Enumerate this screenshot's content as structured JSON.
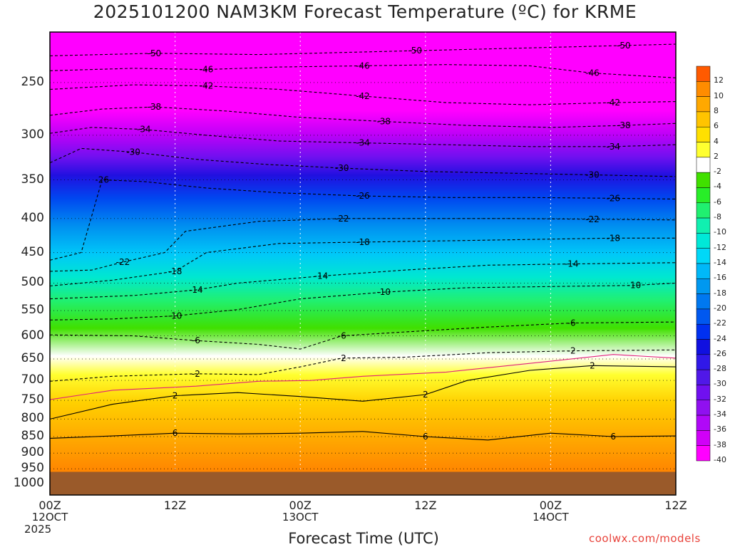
{
  "title": "2025101200 NAM3KM Forecast Temperature (ºC) for KRME",
  "xlabel": "Forecast Time (UTC)",
  "credit": "coolwx.com/models",
  "chart_data": {
    "type": "heatmap",
    "title": "2025101200 NAM3KM Forecast Temperature (ºC) for KRME",
    "xlabel": "Forecast Time (UTC)",
    "ylabel": "",
    "x_range_hours": [
      0,
      60
    ],
    "y_range_hpa": [
      210,
      1040
    ],
    "y_scale": "log",
    "y_inverted": true,
    "ground_level_hpa": 960,
    "x_ticks": [
      {
        "hour": 0,
        "line1": "00Z",
        "line2": "12OCT",
        "line3": "2025"
      },
      {
        "hour": 12,
        "line1": "12Z",
        "line2": "",
        "line3": ""
      },
      {
        "hour": 24,
        "line1": "00Z",
        "line2": "13OCT",
        "line3": ""
      },
      {
        "hour": 36,
        "line1": "12Z",
        "line2": "",
        "line3": ""
      },
      {
        "hour": 48,
        "line1": "00Z",
        "line2": "14OCT",
        "line3": ""
      },
      {
        "hour": 60,
        "line1": "12Z",
        "line2": "",
        "line3": ""
      }
    ],
    "y_ticks": [
      250,
      300,
      350,
      400,
      450,
      500,
      550,
      600,
      650,
      700,
      750,
      800,
      850,
      900,
      950,
      1000
    ],
    "grid": true,
    "colorbar": {
      "placement": "right",
      "bins": [
        {
          "label": "12",
          "color": "#ff5a00"
        },
        {
          "label": "10",
          "color": "#ff8c00"
        },
        {
          "label": "8",
          "color": "#ffa800"
        },
        {
          "label": "6",
          "color": "#ffc400"
        },
        {
          "label": "4",
          "color": "#ffe000"
        },
        {
          "label": "2",
          "color": "#ffff30"
        },
        {
          "label": "-2",
          "color": "#ffffff"
        },
        {
          "label": "-4",
          "color": "#40e000"
        },
        {
          "label": "-6",
          "color": "#28ee28"
        },
        {
          "label": "-8",
          "color": "#20f070"
        },
        {
          "label": "-10",
          "color": "#10f0b0"
        },
        {
          "label": "-12",
          "color": "#00e8d8"
        },
        {
          "label": "-14",
          "color": "#00d8f8"
        },
        {
          "label": "-16",
          "color": "#00b8f8"
        },
        {
          "label": "-18",
          "color": "#0098f0"
        },
        {
          "label": "-20",
          "color": "#0078f0"
        },
        {
          "label": "-22",
          "color": "#0058f0"
        },
        {
          "label": "-24",
          "color": "#0030f0"
        },
        {
          "label": "-26",
          "color": "#1010e0"
        },
        {
          "label": "-28",
          "color": "#3018e8"
        },
        {
          "label": "-30",
          "color": "#5018e8"
        },
        {
          "label": "-32",
          "color": "#7010f0"
        },
        {
          "label": "-34",
          "color": "#9010f0"
        },
        {
          "label": "-36",
          "color": "#b008f8"
        },
        {
          "label": "-38",
          "color": "#d000f8"
        },
        {
          "label": "-40",
          "color": "#ff00ff"
        }
      ]
    },
    "isotherms": [
      {
        "temp": -50,
        "label": "-50",
        "style": "dashed",
        "points": [
          [
            0,
            228
          ],
          [
            10,
            226
          ],
          [
            20,
            227
          ],
          [
            25,
            226
          ],
          [
            35,
            224
          ],
          [
            45,
            222
          ],
          [
            55,
            220
          ],
          [
            60,
            219
          ]
        ]
      },
      {
        "temp": -46,
        "label": "-46",
        "style": "dashed",
        "points": [
          [
            0,
            240
          ],
          [
            8,
            238
          ],
          [
            15,
            239
          ],
          [
            22,
            237
          ],
          [
            30,
            236
          ],
          [
            38,
            235
          ],
          [
            46,
            236
          ],
          [
            52,
            242
          ],
          [
            60,
            246
          ]
        ]
      },
      {
        "temp": -42,
        "label": "-42",
        "style": "dashed",
        "points": [
          [
            0,
            256
          ],
          [
            8,
            252
          ],
          [
            15,
            253
          ],
          [
            22,
            256
          ],
          [
            30,
            262
          ],
          [
            38,
            268
          ],
          [
            46,
            270
          ],
          [
            54,
            268
          ],
          [
            60,
            267
          ]
        ]
      },
      {
        "temp": -38,
        "label": "-38",
        "style": "dashed",
        "points": [
          [
            0,
            280
          ],
          [
            5,
            274
          ],
          [
            10,
            272
          ],
          [
            17,
            276
          ],
          [
            24,
            282
          ],
          [
            32,
            286
          ],
          [
            40,
            290
          ],
          [
            48,
            292
          ],
          [
            55,
            290
          ],
          [
            60,
            288
          ]
        ]
      },
      {
        "temp": -34,
        "label": "-34",
        "style": "dashed",
        "points": [
          [
            0,
            298
          ],
          [
            4,
            292
          ],
          [
            9,
            294
          ],
          [
            15,
            300
          ],
          [
            22,
            306
          ],
          [
            30,
            308
          ],
          [
            38,
            310
          ],
          [
            46,
            312
          ],
          [
            54,
            312
          ],
          [
            60,
            310
          ]
        ]
      },
      {
        "temp": -30,
        "label": "-30",
        "style": "dashed",
        "points": [
          [
            0,
            330
          ],
          [
            3,
            314
          ],
          [
            8,
            318
          ],
          [
            14,
            326
          ],
          [
            21,
            332
          ],
          [
            28,
            336
          ],
          [
            36,
            340
          ],
          [
            44,
            342
          ],
          [
            52,
            344
          ],
          [
            60,
            346
          ]
        ]
      },
      {
        "temp": -26,
        "label": "-26",
        "style": "dashed",
        "points": [
          [
            0,
            462
          ],
          [
            3,
            450
          ],
          [
            5,
            350
          ],
          [
            9,
            352
          ],
          [
            15,
            360
          ],
          [
            22,
            366
          ],
          [
            30,
            370
          ],
          [
            38,
            372
          ],
          [
            46,
            372
          ],
          [
            54,
            373
          ],
          [
            60,
            374
          ]
        ]
      },
      {
        "temp": -22,
        "label": "-22",
        "style": "dashed",
        "points": [
          [
            0,
            480
          ],
          [
            4,
            478
          ],
          [
            7,
            465
          ],
          [
            11,
            450
          ],
          [
            13,
            418
          ],
          [
            20,
            404
          ],
          [
            28,
            400
          ],
          [
            36,
            400
          ],
          [
            44,
            400
          ],
          [
            52,
            401
          ],
          [
            60,
            402
          ]
        ]
      },
      {
        "temp": -18,
        "label": "-18",
        "style": "dashed",
        "points": [
          [
            0,
            505
          ],
          [
            6,
            495
          ],
          [
            12,
            480
          ],
          [
            15,
            450
          ],
          [
            22,
            436
          ],
          [
            30,
            434
          ],
          [
            38,
            432
          ],
          [
            46,
            430
          ],
          [
            54,
            428
          ],
          [
            60,
            428
          ]
        ]
      },
      {
        "temp": -14,
        "label": "-14",
        "style": "dashed",
        "points": [
          [
            0,
            528
          ],
          [
            8,
            522
          ],
          [
            14,
            512
          ],
          [
            18,
            500
          ],
          [
            26,
            488
          ],
          [
            34,
            478
          ],
          [
            42,
            470
          ],
          [
            50,
            468
          ],
          [
            60,
            466
          ]
        ]
      },
      {
        "temp": -10,
        "label": "-10",
        "style": "dashed",
        "points": [
          [
            0,
            568
          ],
          [
            6,
            566
          ],
          [
            12,
            560
          ],
          [
            18,
            548
          ],
          [
            24,
            528
          ],
          [
            32,
            516
          ],
          [
            40,
            508
          ],
          [
            48,
            506
          ],
          [
            56,
            504
          ],
          [
            60,
            500
          ]
        ]
      },
      {
        "temp": -6,
        "label": "-6",
        "style": "dashed",
        "points": [
          [
            0,
            598
          ],
          [
            8,
            600
          ],
          [
            14,
            610
          ],
          [
            20,
            618
          ],
          [
            24,
            628
          ],
          [
            28,
            600
          ],
          [
            34,
            592
          ],
          [
            42,
            582
          ],
          [
            50,
            574
          ],
          [
            60,
            572
          ]
        ]
      },
      {
        "temp": -2,
        "label": "-2",
        "style": "dashed",
        "points": [
          [
            0,
            702
          ],
          [
            6,
            690
          ],
          [
            14,
            684
          ],
          [
            20,
            686
          ],
          [
            24,
            668
          ],
          [
            28,
            648
          ],
          [
            34,
            646
          ],
          [
            42,
            636
          ],
          [
            50,
            632
          ],
          [
            60,
            630
          ]
        ]
      },
      {
        "temp": 0,
        "label": "",
        "style": "solid-magenta",
        "points": [
          [
            0,
            748
          ],
          [
            6,
            724
          ],
          [
            14,
            714
          ],
          [
            20,
            702
          ],
          [
            25,
            700
          ],
          [
            30,
            690
          ],
          [
            38,
            680
          ],
          [
            46,
            660
          ],
          [
            54,
            640
          ],
          [
            60,
            648
          ]
        ]
      },
      {
        "temp": 2,
        "label": "2",
        "style": "solid",
        "points": [
          [
            0,
            800
          ],
          [
            6,
            760
          ],
          [
            12,
            738
          ],
          [
            18,
            730
          ],
          [
            24,
            740
          ],
          [
            30,
            752
          ],
          [
            36,
            735
          ],
          [
            40,
            700
          ],
          [
            46,
            676
          ],
          [
            52,
            665
          ],
          [
            60,
            668
          ]
        ]
      },
      {
        "temp": 6,
        "label": "6",
        "style": "solid",
        "points": [
          [
            0,
            855
          ],
          [
            6,
            848
          ],
          [
            12,
            840
          ],
          [
            18,
            842
          ],
          [
            24,
            840
          ],
          [
            30,
            835
          ],
          [
            36,
            850
          ],
          [
            42,
            860
          ],
          [
            48,
            840
          ],
          [
            54,
            850
          ],
          [
            60,
            848
          ]
        ]
      }
    ]
  }
}
